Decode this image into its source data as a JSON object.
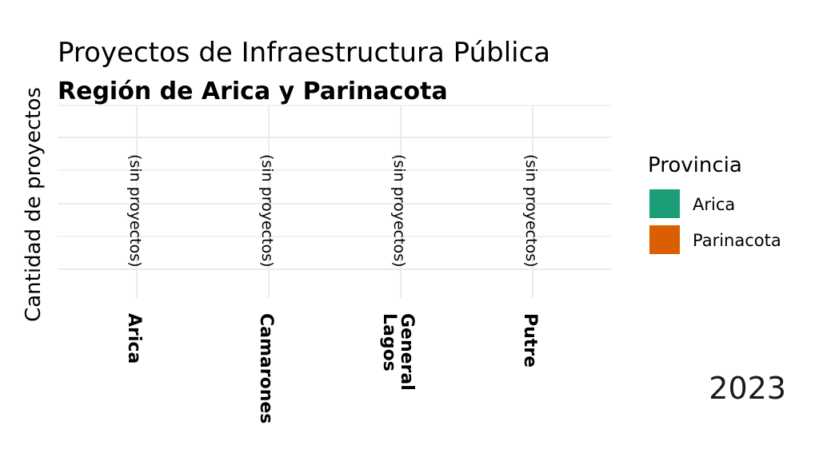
{
  "chart_data": {
    "type": "bar",
    "title": "Proyectos de Infraestructura Pública",
    "subtitle": "Región de Arica y Parinacota",
    "xlabel": "",
    "ylabel": "Cantidad de proyectos",
    "categories": [
      [
        "Arica"
      ],
      [
        "Camarones"
      ],
      [
        "General",
        "Lagos"
      ],
      [
        "Putre"
      ]
    ],
    "series": [
      {
        "name": "Arica",
        "values": [
          0,
          0,
          0,
          0
        ]
      },
      {
        "name": "Parinacota",
        "values": [
          0,
          0,
          0,
          0
        ]
      }
    ],
    "bar_labels": [
      "(sin proyectos)",
      "(sin proyectos)",
      "(sin proyectos)",
      "(sin proyectos)"
    ],
    "legend": {
      "title": "Provincia",
      "placement": "right"
    },
    "colors": {
      "Arica": "#1b9e77",
      "Parinacota": "#d95f02",
      "grid": "#ebebeb"
    },
    "grid": true,
    "caption": "2023"
  }
}
